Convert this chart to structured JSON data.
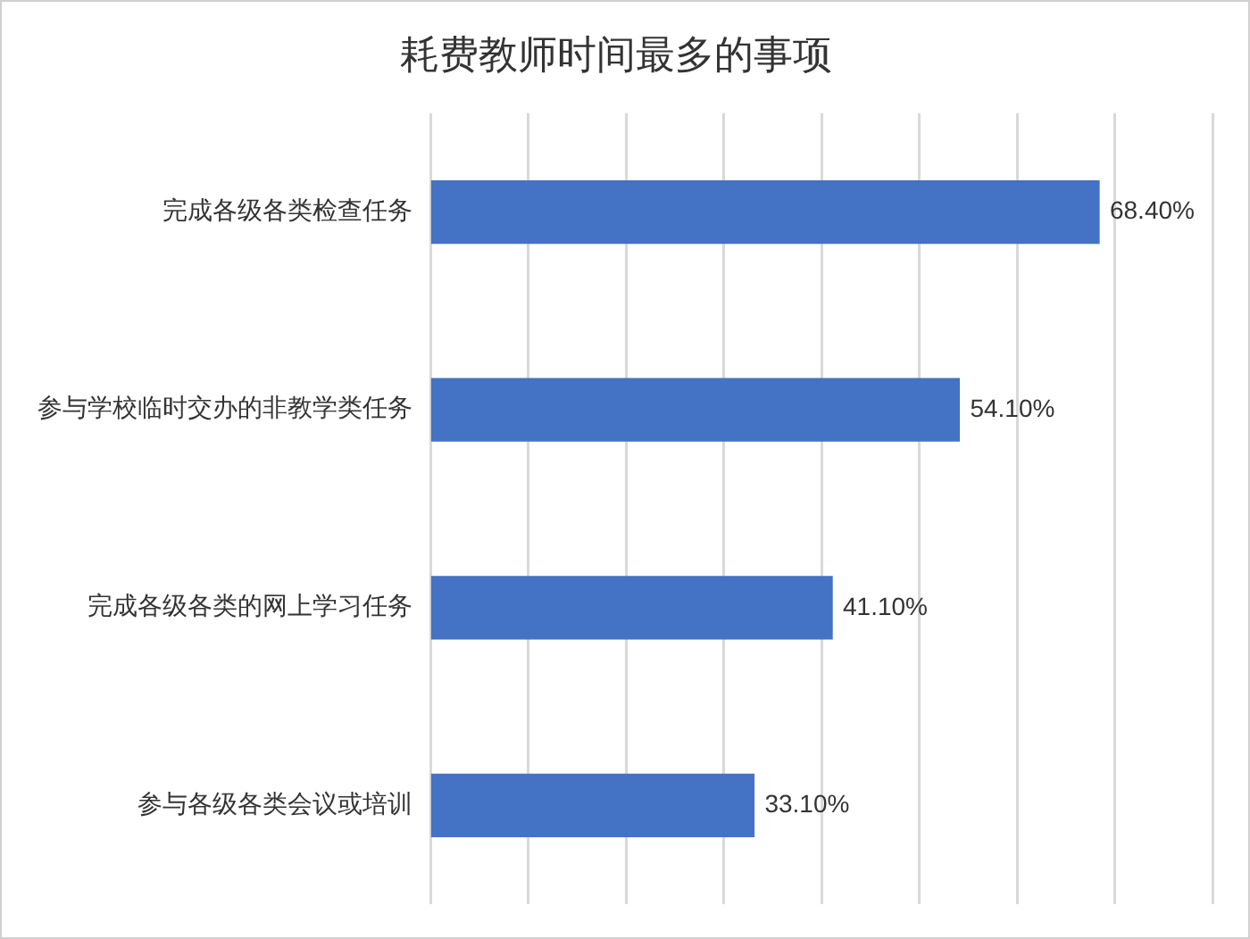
{
  "chart_data": {
    "type": "bar",
    "orientation": "horizontal",
    "title": "耗费教师时间最多的事项",
    "categories": [
      "完成各级各类检查任务",
      "参与学校临时交办的非教学类任务",
      "完成各级各类的网上学习任务",
      "参与各级各类会议或培训"
    ],
    "values": [
      68.4,
      54.1,
      41.1,
      33.1
    ],
    "value_labels": [
      "68.40%",
      "54.10%",
      "41.10%",
      "33.10%"
    ],
    "color": "#4472c4",
    "xlim": [
      0,
      80
    ],
    "xticks": [
      {
        "value": 0,
        "label": null
      },
      {
        "value": 10,
        "label": null
      },
      {
        "value": 20,
        "label": null
      },
      {
        "value": 30,
        "label": null
      },
      {
        "value": 40,
        "label": null
      },
      {
        "value": 50,
        "label": null
      },
      {
        "value": 60,
        "label": null
      },
      {
        "value": 70,
        "label": null
      },
      {
        "value": 80,
        "label": null
      }
    ],
    "tick_labels": "y",
    "grid": "x",
    "legend": false
  }
}
